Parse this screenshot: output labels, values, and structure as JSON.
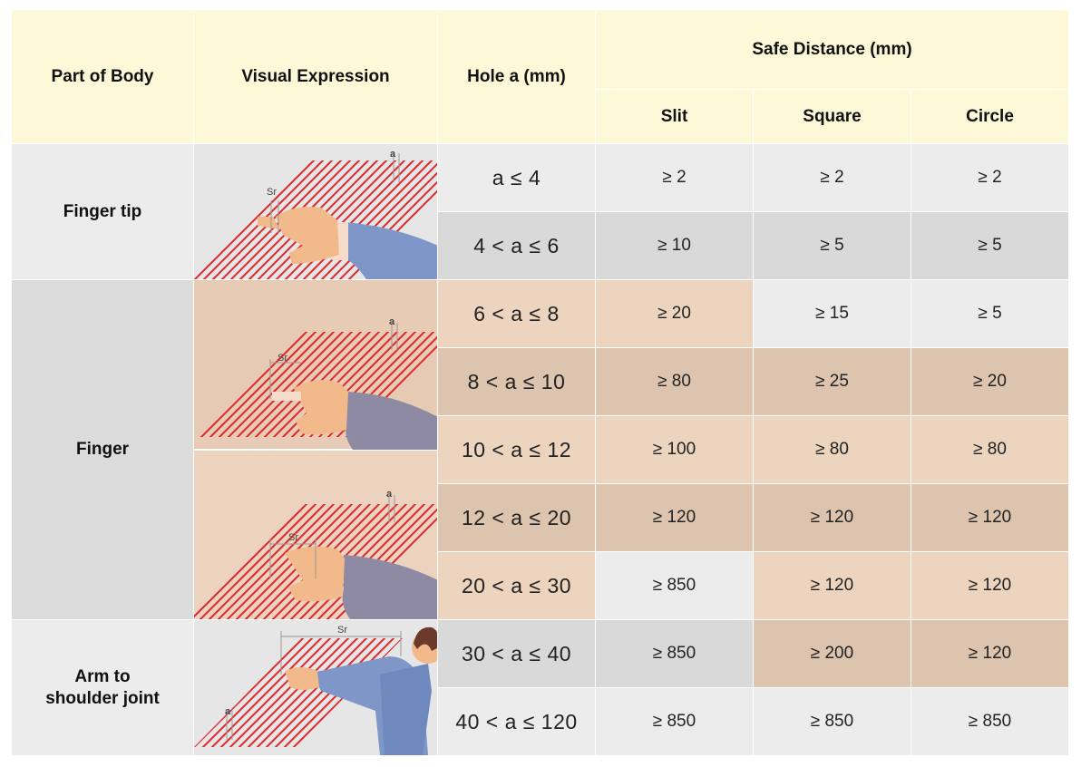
{
  "headers": {
    "part": "Part of Body",
    "visual": "Visual Expression",
    "hole": "Hole a (mm)",
    "safe": "Safe Distance (mm)",
    "slit": "Slit",
    "square": "Square",
    "circle": "Circle"
  },
  "groups": {
    "finger_tip": "Finger tip",
    "finger": "Finger",
    "arm_line1": "Arm to",
    "arm_line2": "shoulder joint"
  },
  "illus_labels": {
    "sr": "Sr",
    "a": "a"
  },
  "rows": [
    {
      "hole": "a ≤ 4",
      "slit": "≥ 2",
      "square": "≥ 2",
      "circle": "≥ 2"
    },
    {
      "hole": "4 < a ≤ 6",
      "slit": "≥ 10",
      "square": "≥ 5",
      "circle": "≥ 5"
    },
    {
      "hole": "6 < a ≤ 8",
      "slit": "≥ 20",
      "square": "≥ 15",
      "circle": "≥ 5"
    },
    {
      "hole": "8 < a ≤ 10",
      "slit": "≥ 80",
      "square": "≥ 25",
      "circle": "≥ 20"
    },
    {
      "hole": "10 < a ≤ 12",
      "slit": "≥ 100",
      "square": "≥ 80",
      "circle": "≥ 80"
    },
    {
      "hole": "12 < a ≤ 20",
      "slit": "≥ 120",
      "square": "≥ 120",
      "circle": "≥ 120"
    },
    {
      "hole": "20 < a ≤ 30",
      "slit": "≥ 850",
      "square": "≥ 120",
      "circle": "≥ 120"
    },
    {
      "hole": "30 < a ≤ 40",
      "slit": "≥ 850",
      "square": "≥ 200",
      "circle": "≥ 120"
    },
    {
      "hole": "40 < a ≤ 120",
      "slit": "≥ 850",
      "square": "≥ 850",
      "circle": "≥ 850"
    }
  ],
  "colors": {
    "header_bg": "#fdf9d8",
    "gray_light": "#ececec",
    "gray_dark": "#d9d9d9",
    "peach_light": "#ecd4bf",
    "peach_dark": "#dcc4ae",
    "hatch_red": "#e0262b",
    "skin": "#f2b98a",
    "sleeve_blue": "#7e96c8",
    "sleeve_slate": "#8f8aa3"
  }
}
